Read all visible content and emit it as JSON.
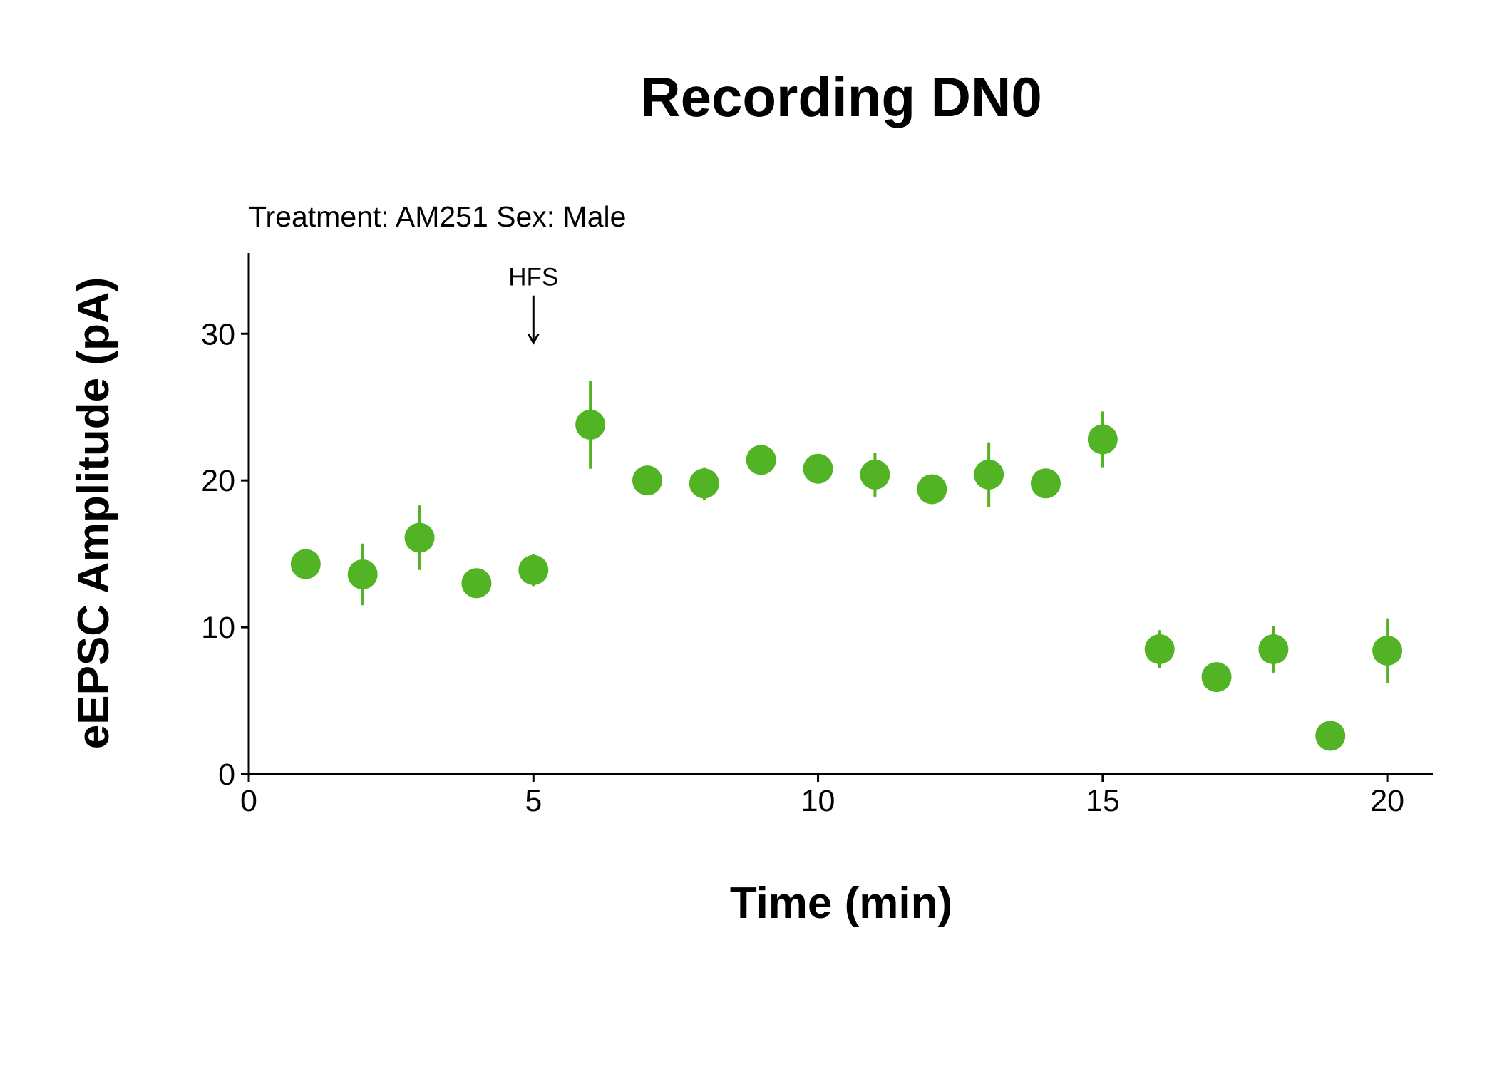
{
  "chart_data": {
    "type": "scatter",
    "title": "Recording DN0",
    "subtitle": "Treatment: AM251  Sex: Male",
    "xlabel": "Time (min)",
    "ylabel": "eEPSC Amplitude (pA)",
    "xlim": [
      0,
      20.8
    ],
    "ylim": [
      0,
      35.5
    ],
    "x_ticks": [
      0,
      5,
      10,
      15,
      20
    ],
    "x_tick_labels": [
      "0",
      "5",
      "10",
      "15",
      "20"
    ],
    "y_ticks": [
      0,
      10,
      20,
      30
    ],
    "y_tick_labels": [
      "0",
      "10",
      "20",
      "30"
    ],
    "grid": false,
    "legend": "none",
    "color": "#52b325",
    "annotation": {
      "label": "HFS",
      "x": 5,
      "arrow_from_y": 32.6,
      "arrow_to_y": 29.4
    },
    "series": [
      {
        "x": [
          1,
          2,
          3,
          4,
          5,
          6,
          7,
          8,
          9,
          10,
          11,
          12,
          13,
          14,
          15,
          16,
          17,
          18,
          19,
          20
        ],
        "y": [
          14.3,
          13.6,
          16.1,
          13.0,
          13.9,
          23.8,
          20.0,
          19.8,
          21.4,
          20.8,
          20.4,
          19.4,
          20.4,
          19.8,
          22.8,
          8.5,
          6.6,
          8.5,
          2.6,
          8.4
        ],
        "err": [
          0.9,
          2.1,
          2.2,
          0.6,
          1.1,
          3.0,
          1.0,
          1.1,
          0.6,
          0.5,
          1.5,
          0.6,
          2.2,
          0.8,
          1.9,
          1.3,
          0.3,
          1.6,
          0.9,
          2.2
        ]
      }
    ]
  }
}
